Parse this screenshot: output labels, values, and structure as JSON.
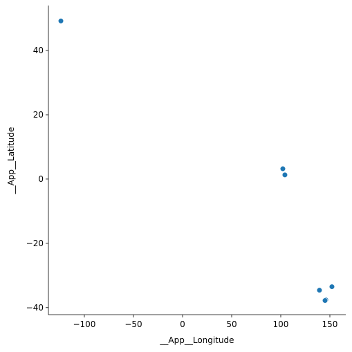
{
  "chart_data": {
    "type": "scatter",
    "x_label": "__App__Longitude",
    "y_label": "__App__Latitude",
    "series": [
      {
        "color": "#1f77b4",
        "x": [
          -123.9,
          102.1,
          104.2,
          139.4,
          152.1,
          145.8,
          145.1
        ],
        "values": [
          49.2,
          3.2,
          1.3,
          -34.6,
          -33.5,
          -37.6,
          -37.8
        ]
      }
    ],
    "xlim": [
      -136.6,
      166.2
    ],
    "ylim": [
      -42.2,
      54
    ],
    "xticks": [
      {
        "value": -100,
        "label": "−100"
      },
      {
        "value": -50,
        "label": "−50"
      },
      0,
      50,
      100,
      150
    ],
    "yticks": [
      {
        "value": -40,
        "label": "−40"
      },
      {
        "value": -20,
        "label": "−20"
      },
      0,
      20,
      40
    ]
  }
}
